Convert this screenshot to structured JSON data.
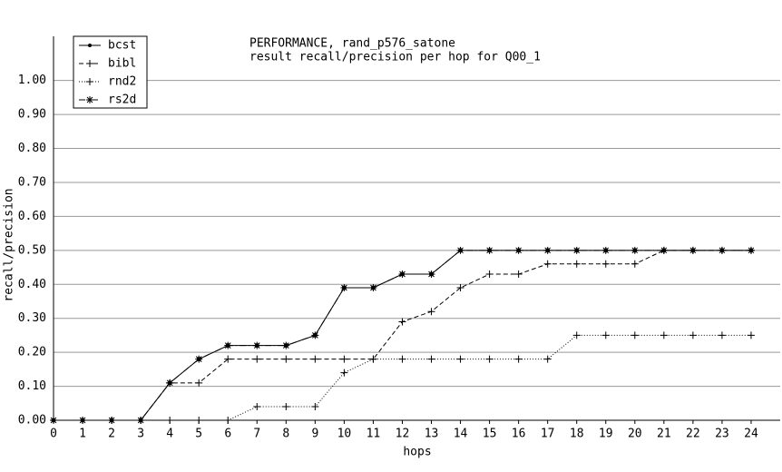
{
  "chart_data": {
    "type": "line",
    "title": "PERFORMANCE, rand_p576_satone",
    "subtitle": "result recall/precision per hop for Q00_1",
    "x_label": "hops",
    "y_label": "recall/precision",
    "x": [
      0,
      1,
      2,
      3,
      4,
      5,
      6,
      7,
      8,
      9,
      10,
      11,
      12,
      13,
      14,
      15,
      16,
      17,
      18,
      19,
      20,
      21,
      22,
      23,
      24
    ],
    "xlim": [
      0,
      25
    ],
    "xticks": [
      0,
      1,
      2,
      3,
      4,
      5,
      6,
      7,
      8,
      9,
      10,
      11,
      12,
      13,
      14,
      15,
      16,
      17,
      18,
      19,
      20,
      21,
      22,
      23,
      24
    ],
    "ylim": [
      0,
      1.13
    ],
    "yticks": [
      {
        "value": 0,
        "label": "0.00"
      },
      {
        "value": 0.1,
        "label": "0.10"
      },
      {
        "value": 0.2,
        "label": "0.20"
      },
      {
        "value": 0.3,
        "label": "0.30"
      },
      {
        "value": 0.4,
        "label": "0.40"
      },
      {
        "value": 0.5,
        "label": "0.50"
      },
      {
        "value": 0.6,
        "label": "0.60"
      },
      {
        "value": 0.7,
        "label": "0.70"
      },
      {
        "value": 0.8,
        "label": "0.80"
      },
      {
        "value": 0.9,
        "label": "0.90"
      },
      {
        "value": 1,
        "label": "1.00"
      }
    ],
    "grid": true,
    "legend": "top-left",
    "series": [
      {
        "name": "bcst",
        "color": "#000000",
        "dash": "solid",
        "marker": "dot",
        "values": [
          0,
          0,
          0,
          0,
          0.11,
          0.18,
          0.22,
          0.22,
          0.22,
          0.25,
          0.39,
          0.39,
          0.43,
          0.43,
          0.5,
          0.5,
          0.5,
          0.5,
          0.5,
          0.5,
          0.5,
          0.5,
          0.5,
          0.5,
          0.5
        ]
      },
      {
        "name": "bibl",
        "color": "#000000",
        "dash": "dashed",
        "marker": "plus",
        "values": [
          0,
          0,
          0,
          0,
          0.11,
          0.11,
          0.18,
          0.18,
          0.18,
          0.18,
          0.18,
          0.18,
          0.29,
          0.32,
          0.39,
          0.43,
          0.43,
          0.46,
          0.46,
          0.46,
          0.46,
          0.5,
          0.5,
          0.5,
          0.5
        ]
      },
      {
        "name": "rnd2",
        "color": "#000000",
        "dash": "dotted",
        "marker": "plus",
        "values": [
          0,
          0,
          0,
          0,
          0,
          0,
          0,
          0.04,
          0.04,
          0.04,
          0.14,
          0.18,
          0.18,
          0.18,
          0.18,
          0.18,
          0.18,
          0.18,
          0.25,
          0.25,
          0.25,
          0.25,
          0.25,
          0.25,
          0.25
        ]
      },
      {
        "name": "rs2d",
        "color": "#000000",
        "dash": "dashdot",
        "marker": "star",
        "values": [
          0,
          0,
          0,
          0,
          0.11,
          0.18,
          0.22,
          0.22,
          0.22,
          0.25,
          0.39,
          0.39,
          0.43,
          0.43,
          0.5,
          0.5,
          0.5,
          0.5,
          0.5,
          0.5,
          0.5,
          0.5,
          0.5,
          0.5,
          0.5
        ]
      }
    ]
  }
}
